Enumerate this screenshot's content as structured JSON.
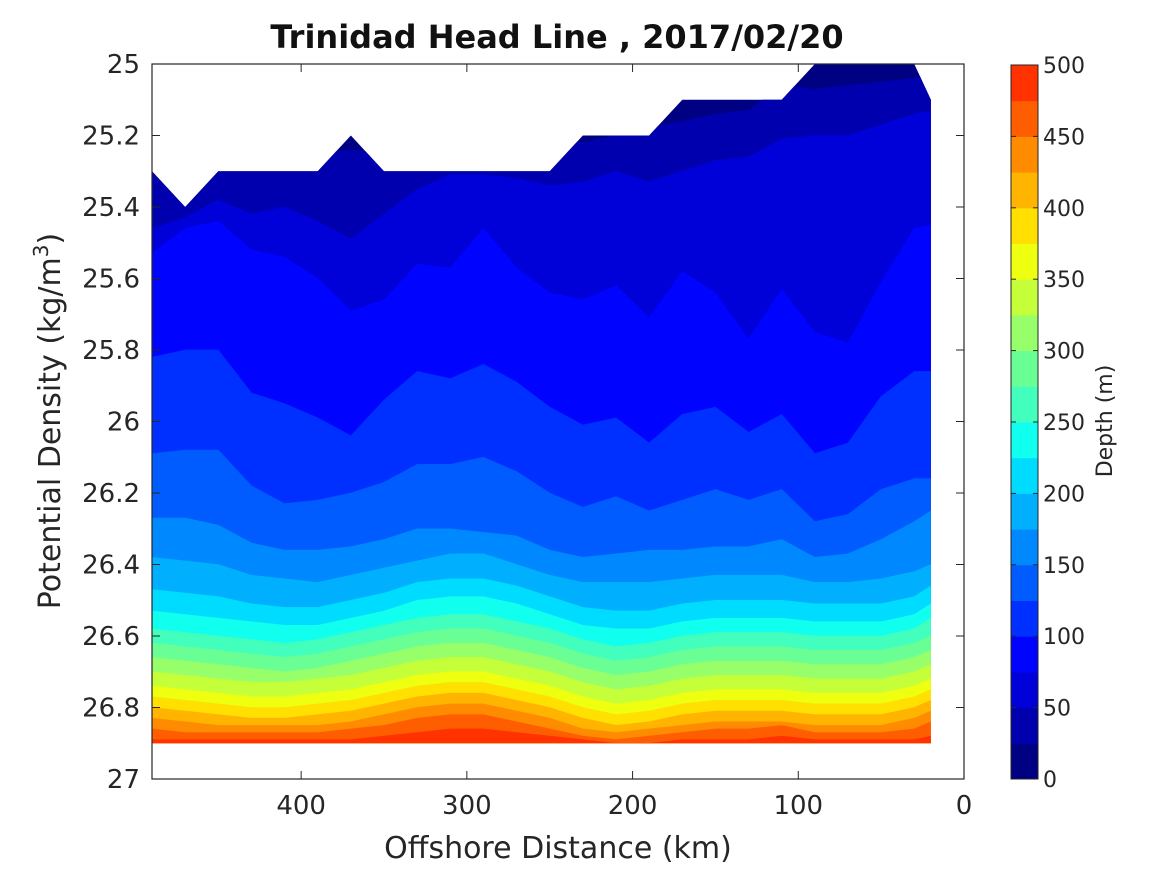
{
  "chart_data": {
    "type": "contourf",
    "title": "Trinidad Head Line , 2017/02/20",
    "xlabel": "Offshore Distance (km)",
    "ylabel_main": "Potential Density (kg/m",
    "ylabel_sup": "3",
    "ylabel_close": ")",
    "xlim": [
      490,
      0
    ],
    "ylim": [
      25,
      27
    ],
    "x_ticks": [
      400,
      300,
      200,
      100,
      0
    ],
    "y_ticks": [
      25,
      25.2,
      25.4,
      25.6,
      25.8,
      26,
      26.2,
      26.4,
      26.6,
      26.8,
      27
    ],
    "y_tick_labels": [
      "25",
      "25.2",
      "25.4",
      "25.6",
      "25.8",
      "26",
      "26.2",
      "26.4",
      "26.6",
      "26.8",
      "27"
    ],
    "x_tick_labels": [
      "400",
      "300",
      "200",
      "100",
      "0"
    ],
    "colorbar": {
      "label": "Depth (m)",
      "ticks": [
        0,
        50,
        100,
        150,
        200,
        250,
        300,
        350,
        400,
        450,
        500
      ],
      "tick_labels": [
        "0",
        "50",
        "100",
        "150",
        "200",
        "250",
        "300",
        "350",
        "400",
        "450",
        "500"
      ],
      "range": [
        0,
        500
      ],
      "level_step": 25,
      "colors": [
        "#000082",
        "#0000AE",
        "#0000D8",
        "#0004FF",
        "#0030FF",
        "#005CFF",
        "#0088FF",
        "#00B0FF",
        "#00DCFF",
        "#10FFEE",
        "#42FFBD",
        "#6AFF95",
        "#96FF69",
        "#C4FF3A",
        "#EEFF10",
        "#FFE000",
        "#FFB400",
        "#FF8C00",
        "#FF5E00",
        "#FF3200",
        "#F70000",
        "#CB0000"
      ]
    },
    "x_distance_km": [
      490,
      470,
      450,
      430,
      410,
      390,
      370,
      350,
      330,
      310,
      290,
      270,
      250,
      230,
      210,
      190,
      170,
      150,
      130,
      110,
      90,
      70,
      50,
      30,
      20
    ],
    "isopycnal_depth_levels_m": [
      25,
      50,
      75,
      100,
      125,
      150,
      175,
      200,
      225,
      250,
      275,
      300,
      325,
      350,
      375,
      400,
      425,
      450,
      475
    ],
    "density_of_depth_level": [
      [
        25.22,
        25.24,
        25.25,
        25.26,
        25.26,
        25.25,
        25.24,
        25.25,
        25.25,
        25.24,
        25.23,
        25.22,
        25.21,
        25.22,
        25.2,
        25.18,
        25.16,
        25.14,
        25.13,
        25.06,
        25.07,
        25.06,
        25.05,
        25.04,
        25.03
      ],
      [
        25.46,
        25.43,
        25.38,
        25.42,
        25.4,
        25.44,
        25.49,
        25.42,
        25.35,
        25.31,
        25.31,
        25.32,
        25.34,
        25.33,
        25.3,
        25.33,
        25.3,
        25.27,
        25.26,
        25.21,
        25.2,
        25.2,
        25.17,
        25.14,
        25.13
      ],
      [
        25.53,
        25.46,
        25.44,
        25.52,
        25.54,
        25.6,
        25.69,
        25.66,
        25.56,
        25.57,
        25.46,
        25.57,
        25.64,
        25.66,
        25.62,
        25.71,
        25.58,
        25.64,
        25.77,
        25.63,
        25.75,
        25.78,
        25.61,
        25.46,
        25.45
      ],
      [
        25.82,
        25.8,
        25.8,
        25.92,
        25.95,
        25.99,
        26.04,
        25.94,
        25.86,
        25.88,
        25.84,
        25.89,
        25.96,
        26.01,
        25.99,
        26.06,
        25.98,
        25.96,
        26.03,
        25.98,
        26.09,
        26.06,
        25.93,
        25.86,
        25.86
      ],
      [
        26.09,
        26.08,
        26.08,
        26.18,
        26.23,
        26.22,
        26.2,
        26.17,
        26.12,
        26.12,
        26.1,
        26.14,
        26.2,
        26.24,
        26.21,
        26.25,
        26.22,
        26.19,
        26.22,
        26.19,
        26.28,
        26.26,
        26.19,
        26.16,
        26.16
      ],
      [
        26.27,
        26.27,
        26.29,
        26.34,
        26.36,
        26.36,
        26.35,
        26.33,
        26.3,
        26.3,
        26.31,
        26.32,
        26.36,
        26.38,
        26.37,
        26.36,
        26.36,
        26.35,
        26.35,
        26.33,
        26.38,
        26.37,
        26.33,
        26.28,
        26.25
      ],
      [
        26.38,
        26.39,
        26.4,
        26.43,
        26.44,
        26.45,
        26.43,
        26.41,
        26.39,
        26.37,
        26.37,
        26.4,
        26.43,
        26.45,
        26.45,
        26.45,
        26.44,
        26.43,
        26.43,
        26.43,
        26.45,
        26.45,
        26.44,
        26.42,
        26.4
      ],
      [
        26.47,
        26.48,
        26.49,
        26.51,
        26.52,
        26.52,
        26.5,
        26.48,
        26.45,
        26.44,
        26.44,
        26.46,
        26.49,
        26.52,
        26.53,
        26.53,
        26.51,
        26.5,
        26.5,
        26.5,
        26.51,
        26.51,
        26.51,
        26.49,
        26.46
      ],
      [
        26.53,
        26.54,
        26.55,
        26.56,
        26.57,
        26.57,
        26.55,
        26.53,
        26.5,
        26.49,
        26.49,
        26.51,
        26.54,
        26.57,
        26.58,
        26.58,
        26.56,
        26.55,
        26.55,
        26.55,
        26.56,
        26.56,
        26.56,
        26.54,
        26.51
      ],
      [
        26.58,
        26.59,
        26.6,
        26.61,
        26.62,
        26.61,
        26.59,
        26.57,
        26.55,
        26.54,
        26.54,
        26.56,
        26.58,
        26.61,
        26.63,
        26.62,
        26.6,
        26.59,
        26.59,
        26.59,
        26.6,
        26.6,
        26.6,
        26.58,
        26.55
      ],
      [
        26.62,
        26.63,
        26.64,
        26.65,
        26.66,
        26.65,
        26.63,
        26.61,
        26.59,
        26.58,
        26.58,
        26.6,
        26.62,
        26.65,
        26.67,
        26.66,
        26.64,
        26.63,
        26.63,
        26.63,
        26.64,
        26.64,
        26.64,
        26.62,
        26.6
      ],
      [
        26.66,
        26.67,
        26.68,
        26.69,
        26.7,
        26.69,
        26.67,
        26.65,
        26.63,
        26.62,
        26.62,
        26.64,
        26.66,
        26.69,
        26.71,
        26.7,
        26.68,
        26.67,
        26.67,
        26.67,
        26.68,
        26.68,
        26.68,
        26.66,
        26.64
      ],
      [
        26.7,
        26.71,
        26.72,
        26.73,
        26.73,
        26.72,
        26.71,
        26.69,
        26.67,
        26.66,
        26.66,
        26.68,
        26.7,
        26.73,
        26.75,
        26.74,
        26.72,
        26.71,
        26.71,
        26.71,
        26.72,
        26.72,
        26.72,
        26.7,
        26.68
      ],
      [
        26.74,
        26.75,
        26.76,
        26.77,
        26.77,
        26.76,
        26.75,
        26.73,
        26.71,
        26.7,
        26.7,
        26.72,
        26.74,
        26.77,
        26.79,
        26.78,
        26.76,
        26.75,
        26.75,
        26.75,
        26.76,
        26.76,
        26.76,
        26.74,
        26.72
      ],
      [
        26.77,
        26.78,
        26.79,
        26.8,
        26.8,
        26.79,
        26.78,
        26.76,
        26.74,
        26.73,
        26.73,
        26.75,
        26.77,
        26.8,
        26.82,
        26.81,
        26.79,
        26.78,
        26.78,
        26.78,
        26.79,
        26.79,
        26.79,
        26.77,
        26.75
      ],
      [
        26.8,
        26.81,
        26.82,
        26.83,
        26.83,
        26.82,
        26.81,
        26.79,
        26.77,
        26.76,
        26.76,
        26.78,
        26.8,
        26.83,
        26.85,
        26.84,
        26.82,
        26.81,
        26.81,
        26.81,
        26.82,
        26.82,
        26.82,
        26.8,
        26.78
      ],
      [
        26.83,
        26.84,
        26.85,
        26.85,
        26.85,
        26.85,
        26.84,
        26.82,
        26.8,
        26.79,
        26.79,
        26.81,
        26.83,
        26.86,
        26.87,
        26.86,
        26.85,
        26.84,
        26.84,
        26.84,
        26.85,
        26.85,
        26.85,
        26.83,
        26.81
      ],
      [
        26.86,
        26.87,
        26.87,
        26.87,
        26.87,
        26.87,
        26.86,
        26.85,
        26.83,
        26.82,
        26.82,
        26.84,
        26.86,
        26.88,
        26.89,
        26.88,
        26.87,
        26.86,
        26.86,
        26.85,
        26.87,
        26.87,
        26.87,
        26.86,
        26.84
      ],
      [
        26.89,
        26.89,
        26.89,
        26.89,
        26.89,
        26.89,
        26.89,
        26.88,
        26.87,
        26.86,
        26.86,
        26.87,
        26.88,
        26.89,
        26.9,
        26.9,
        26.89,
        26.89,
        26.89,
        26.88,
        26.89,
        26.89,
        26.89,
        26.89,
        26.88
      ]
    ],
    "data_top_density": [
      25.3,
      25.4,
      25.3,
      25.3,
      25.3,
      25.3,
      25.2,
      25.3,
      25.3,
      25.3,
      25.3,
      25.3,
      25.3,
      25.2,
      25.2,
      25.2,
      25.1,
      25.1,
      25.1,
      25.1,
      25.0,
      25.0,
      25.0,
      25.0,
      25.1
    ],
    "data_bottom_density": 26.9,
    "data_x_extent_km": [
      490,
      20
    ]
  }
}
